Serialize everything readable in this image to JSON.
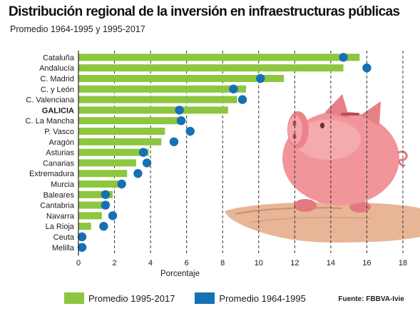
{
  "title": "Distribución regional de la inversión en infraestructuras públicas",
  "subtitle": "Promedio 1964-1995 y 1995-2017",
  "source": "Fuente: FBBVA-Ivie",
  "colors": {
    "bar": "#8dc63f",
    "dot": "#1670b4",
    "grid": "#333333",
    "axis": "#222222"
  },
  "chart_data": {
    "type": "bar",
    "orientation": "horizontal",
    "xlabel": "Porcentaje",
    "xlim": [
      0,
      18
    ],
    "xticks": [
      0,
      2,
      4,
      6,
      8,
      10,
      12,
      14,
      16,
      18
    ],
    "grid": "vertical-dashed",
    "legend_position": "bottom",
    "categories": [
      "Cataluña",
      "Andalucía",
      "C. Madrid",
      "C. y León",
      "C. Valenciana",
      "GALICIA",
      "C. La Mancha",
      "P. Vasco",
      "Aragón",
      "Asturias",
      "Canarias",
      "Extremadura",
      "Murcia",
      "Baleares",
      "Cantabria",
      "Navarra",
      "La Rioja",
      "Ceuta",
      "Melilla"
    ],
    "highlight": "GALICIA",
    "series": [
      {
        "name": "Promedio 1995-2017",
        "kind": "bar",
        "values": [
          15.6,
          14.7,
          11.4,
          9.3,
          8.8,
          8.3,
          5.8,
          4.8,
          4.6,
          3.9,
          3.2,
          2.7,
          2.5,
          1.9,
          1.7,
          1.3,
          0.7,
          0.1,
          0.1
        ]
      },
      {
        "name": "Promedio 1964-1995",
        "kind": "dot",
        "values": [
          14.7,
          16.0,
          10.1,
          8.6,
          9.1,
          5.6,
          5.7,
          6.2,
          5.3,
          3.6,
          3.8,
          3.3,
          2.4,
          1.5,
          1.5,
          1.9,
          1.4,
          0.2,
          0.2
        ]
      }
    ]
  }
}
